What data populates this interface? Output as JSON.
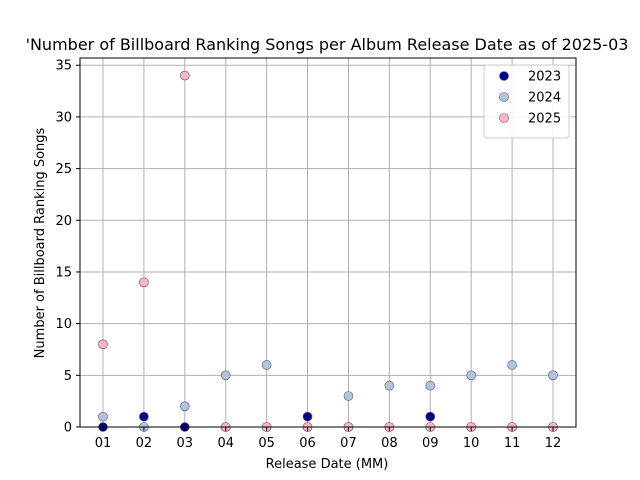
{
  "chart_data": {
    "type": "scatter",
    "title": "'Number of Billboard Ranking Songs per Album Release Date as of 2025-03",
    "xlabel": "Release Date (MM)",
    "ylabel": "Number of Billboard Ranking Songs",
    "categories": [
      "01",
      "02",
      "03",
      "04",
      "05",
      "06",
      "07",
      "08",
      "09",
      "10",
      "11",
      "12"
    ],
    "ylim": [
      0,
      35.7
    ],
    "yticks": [
      0,
      5,
      10,
      15,
      20,
      25,
      30,
      35
    ],
    "grid": true,
    "legend_position": "top-right",
    "series": [
      {
        "name": "2023",
        "color": "#00008b",
        "values": [
          0,
          1,
          0,
          0,
          0,
          1,
          0,
          0,
          1,
          0,
          0,
          0
        ]
      },
      {
        "name": "2024",
        "color": "#b0c4de",
        "values": [
          1,
          0,
          2,
          5,
          6,
          0,
          3,
          4,
          4,
          5,
          6,
          5
        ]
      },
      {
        "name": "2025",
        "color": "#ffb6c1",
        "values": [
          8,
          14,
          34,
          0,
          0,
          0,
          0,
          0,
          0,
          0,
          0,
          0
        ]
      }
    ]
  }
}
